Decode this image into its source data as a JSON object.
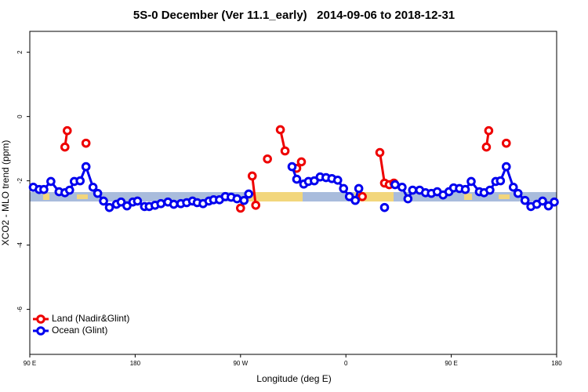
{
  "chart_data": {
    "type": "line",
    "title": "5S-0 December (Ver 11.1_early)   2014-09-06 to 2018-12-31",
    "xlabel": "Longitude (deg E)",
    "ylabel": "XCO2 - MLO trend (ppm)",
    "xlim": [
      90,
      540
    ],
    "ylim": [
      -7.4,
      2.65
    ],
    "xticks": [
      {
        "value": 90,
        "label": "90 E"
      },
      180,
      {
        "value": 270,
        "label": "90 W"
      },
      {
        "value": 360,
        "label": "0"
      },
      {
        "value": 450,
        "label": "90 E"
      },
      {
        "value": 540,
        "label": "180"
      }
    ],
    "yticks": [
      2,
      0,
      -2,
      -4,
      -6
    ],
    "legend": "bottom-left",
    "series": [
      {
        "name": "Land (Nadir&Glint)",
        "color": "#ee0000",
        "x": [
          120,
          122,
          null,
          138,
          null,
          270,
          null,
          280,
          283,
          null,
          293,
          null,
          304,
          308,
          null,
          318,
          322,
          null,
          374,
          null,
          389,
          393,
          397,
          401,
          null,
          480,
          482,
          null,
          497
        ],
        "values": [
          -0.95,
          -0.44,
          null,
          -0.83,
          null,
          -2.85,
          null,
          -1.85,
          -2.76,
          null,
          -1.32,
          null,
          -0.41,
          -1.07,
          null,
          -1.61,
          -1.41,
          null,
          -2.49,
          null,
          -1.12,
          -2.07,
          -2.12,
          -2.07,
          null,
          -0.95,
          -0.44,
          null,
          -0.83
        ]
      },
      {
        "name": "Ocean (Glint)",
        "color": "#0000ee",
        "x": [
          93,
          98,
          102,
          108,
          115,
          120,
          124,
          128,
          133,
          138,
          144,
          148,
          153,
          158,
          164,
          168,
          173,
          178,
          182,
          188,
          192,
          197,
          202,
          208,
          213,
          219,
          224,
          229,
          233,
          238,
          243,
          247,
          252,
          257,
          262,
          267,
          273,
          277,
          null,
          314,
          318,
          324,
          328,
          333,
          338,
          343,
          348,
          353,
          358,
          363,
          368,
          371,
          null,
          393,
          null,
          402,
          408,
          413,
          417,
          423,
          428,
          433,
          438,
          443,
          448,
          452,
          457,
          462,
          467,
          474,
          478,
          483,
          488,
          492,
          497,
          503,
          507,
          513,
          518,
          523,
          528,
          533,
          538
        ],
        "values": [
          -2.2,
          -2.27,
          -2.27,
          -2.02,
          -2.34,
          -2.37,
          -2.29,
          -2.02,
          -2.0,
          -1.56,
          -2.2,
          -2.39,
          -2.63,
          -2.83,
          -2.73,
          -2.66,
          -2.78,
          -2.66,
          -2.63,
          -2.8,
          -2.8,
          -2.76,
          -2.71,
          -2.66,
          -2.73,
          -2.71,
          -2.68,
          -2.63,
          -2.68,
          -2.71,
          -2.63,
          -2.59,
          -2.59,
          -2.49,
          -2.51,
          -2.56,
          -2.61,
          -2.41,
          null,
          -1.56,
          -1.95,
          -2.1,
          -2.02,
          -2.0,
          -1.88,
          -1.9,
          -1.93,
          -1.98,
          -2.24,
          -2.49,
          -2.61,
          -2.24,
          null,
          -2.83,
          null,
          -2.12,
          -2.2,
          -2.56,
          -2.29,
          -2.29,
          -2.37,
          -2.39,
          -2.34,
          -2.44,
          -2.34,
          -2.22,
          -2.24,
          -2.27,
          -2.02,
          -2.34,
          -2.37,
          -2.29,
          -2.02,
          -2.0,
          -1.56,
          -2.2,
          -2.39,
          -2.61,
          -2.8,
          -2.73,
          -2.63,
          -2.78,
          -2.66
        ]
      }
    ]
  }
}
